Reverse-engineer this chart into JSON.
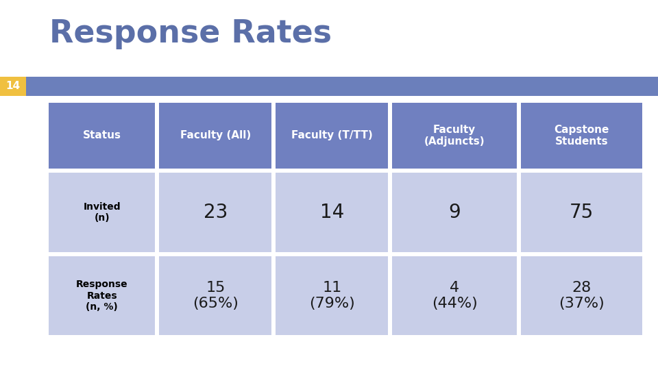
{
  "title": "Response Rates",
  "title_color": "#5B6FA8",
  "slide_number": "14",
  "slide_num_bg": "#F0C040",
  "accent_bar_color": "#6B7FBB",
  "header_bg": "#7080C0",
  "data_bg": "#C8CEE8",
  "col_headers": [
    "Status",
    "Faculty (All)",
    "Faculty (T/TT)",
    "Faculty\n(Adjuncts)",
    "Capstone\nStudents"
  ],
  "row_labels": [
    "Invited\n(n)",
    "Response\nRates\n(n, %)"
  ],
  "data": [
    [
      "23",
      "14",
      "9",
      "75"
    ],
    [
      "15\n(65%)",
      "11\n(79%)",
      "4\n(44%)",
      "28\n(37%)"
    ]
  ],
  "header_text_color": "#FFFFFF",
  "row_label_color": "#000000",
  "data_text_color": "#1A1A1A",
  "background_color": "#FFFFFF",
  "border_color": "#FFFFFF",
  "fig_width": 9.6,
  "fig_height": 5.4,
  "dpi": 100
}
